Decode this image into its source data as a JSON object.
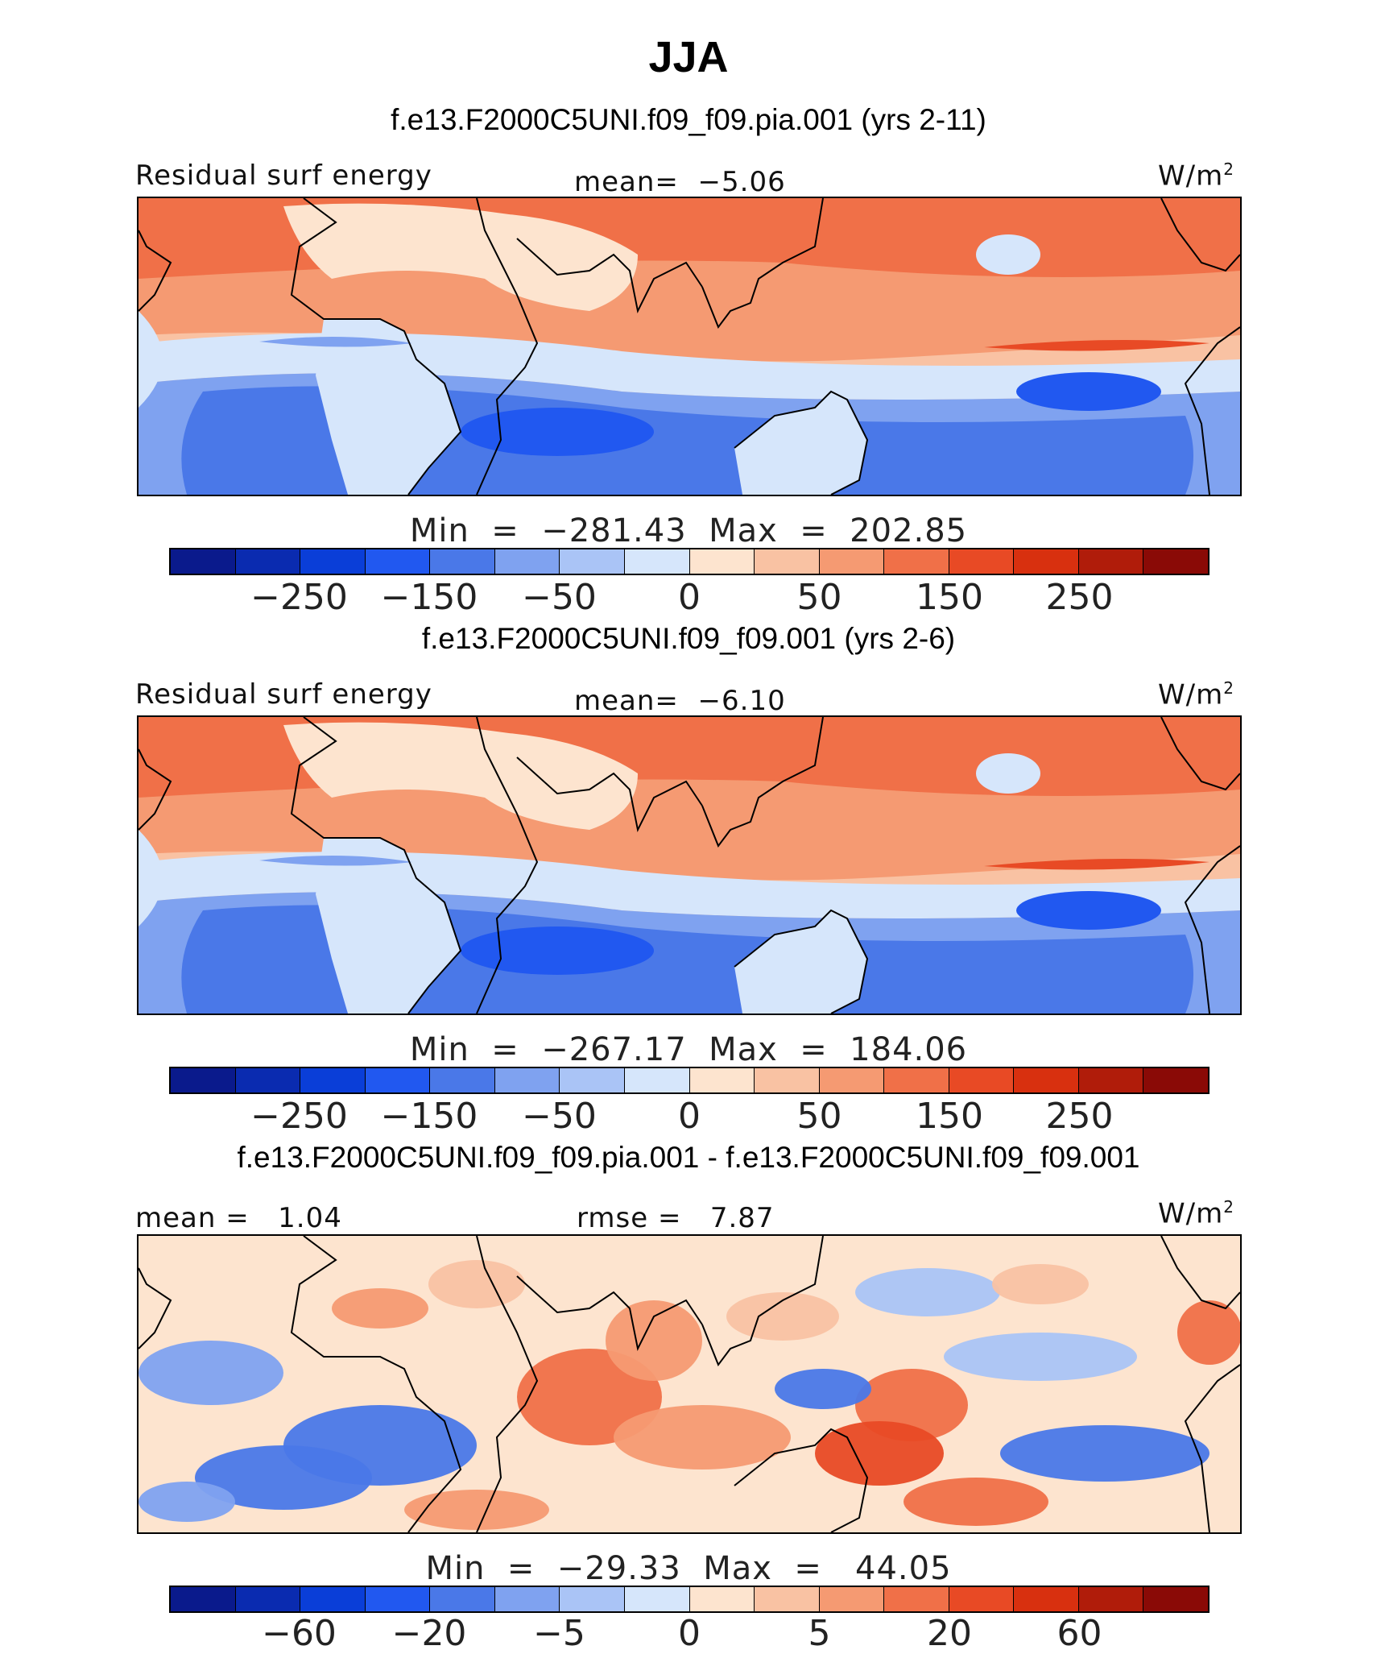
{
  "figure": {
    "season": "JJA",
    "units_main": "W/m",
    "units_sup": "2"
  },
  "colorbar": {
    "colors": [
      "#0a1a8c",
      "#0a2bb0",
      "#0a3ed8",
      "#2158f0",
      "#4a78e8",
      "#7fa2f0",
      "#aac4f6",
      "#d6e6fb",
      "#fde4cf",
      "#f9c2a3",
      "#f59a72",
      "#f07048",
      "#e84a25",
      "#d8300f",
      "#b01c0a",
      "#8a0a06"
    ]
  },
  "panels": [
    {
      "case": "f.e13.F2000C5UNI.f09_f09.pia.001 (yrs 2-11)",
      "left_label": "Residual surf energy",
      "center_label": "mean=  −5.06",
      "minmax": "Min  =  −281.43  Max  =  202.85",
      "ticks": [
        "−250",
        "−150",
        "−50",
        "0",
        "50",
        "150",
        "250"
      ],
      "field": "model"
    },
    {
      "case": "f.e13.F2000C5UNI.f09_f09.001 (yrs 2-6)",
      "left_label": "Residual surf energy",
      "center_label": "mean=  −6.10",
      "minmax": "Min  =  −267.17  Max  =  184.06",
      "ticks": [
        "−250",
        "−150",
        "−50",
        "0",
        "50",
        "150",
        "250"
      ],
      "field": "model"
    },
    {
      "case": "f.e13.F2000C5UNI.f09_f09.pia.001 - f.e13.F2000C5UNI.f09_f09.001",
      "left_label": "mean =   1.04",
      "center_label": "rmse =   7.87",
      "minmax": "Min  =  −29.33  Max  =   44.05",
      "ticks": [
        "−60",
        "−20",
        "−5",
        "0",
        "5",
        "20",
        "60"
      ],
      "field": "difference"
    }
  ]
}
